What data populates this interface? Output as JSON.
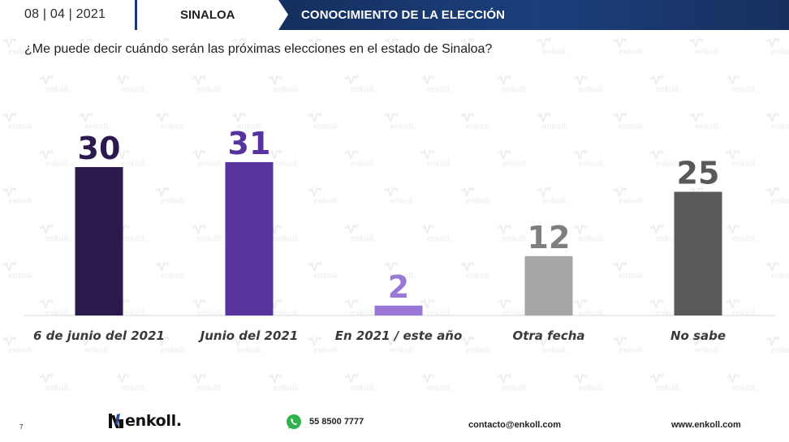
{
  "header": {
    "date": "08 | 04 | 2021",
    "state": "SINALOA",
    "section_title": "CONOCIMIENTO DE LA ELECCIÓN"
  },
  "question": "¿Me puede decir cuándo serán las próximas elecciones en el estado de Sinaloa?",
  "watermark_text": "enkoll.",
  "chart_data": {
    "type": "bar",
    "title": "¿Me puede decir cuándo serán las próximas elecciones en el estado de Sinaloa?",
    "xlabel": "",
    "ylabel": "",
    "categories": [
      "6 de junio del 2021",
      "Junio del 2021",
      "En 2021 / este año",
      "Otra fecha",
      "No sabe"
    ],
    "values": [
      30,
      31,
      2,
      12,
      25
    ],
    "colors": [
      "#2c1a4e",
      "#5733a0",
      "#9a78d8",
      "#a6a6a6",
      "#595959"
    ],
    "label_colors": [
      "#2c1a4e",
      "#5733a0",
      "#9a78d8",
      "#7f7f7f",
      "#595959"
    ],
    "ylim": [
      0,
      35
    ],
    "grid": false,
    "legend": "none",
    "data_labels": true
  },
  "footer": {
    "page_number": "7",
    "logo_text": "enkoll.",
    "phone": "55 8500 7777",
    "email": "contacto@enkoll.com",
    "website": "www.enkoll.com"
  }
}
